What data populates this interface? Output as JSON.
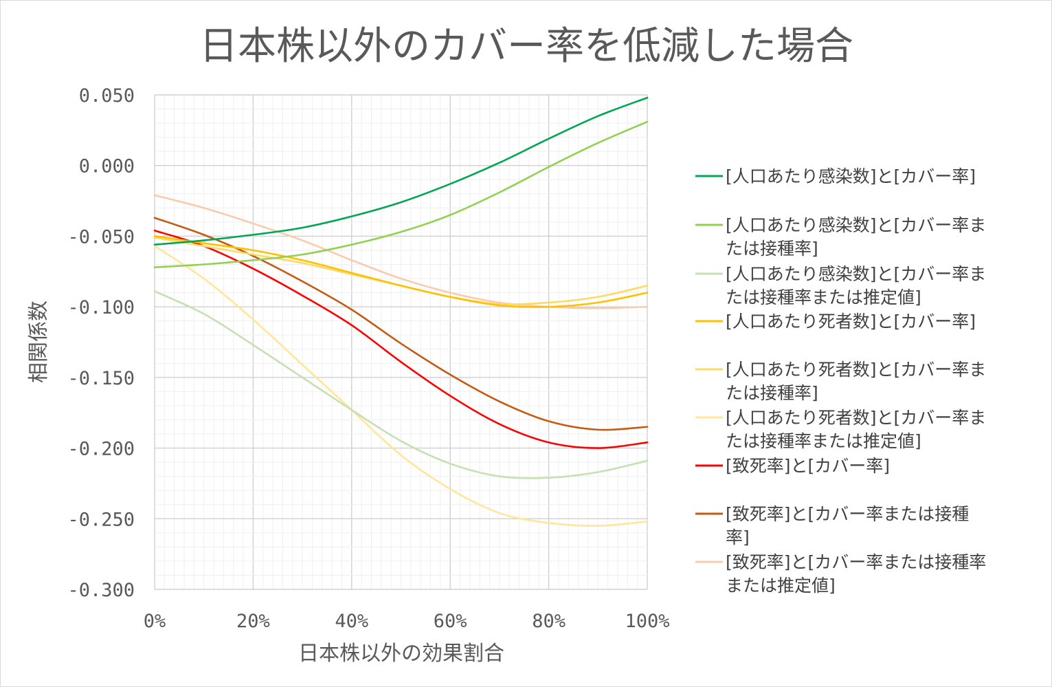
{
  "chart_data": {
    "type": "line",
    "title": "日本株以外のカバー率を低減した場合",
    "xlabel": "日本株以外の効果割合",
    "ylabel": "相関係数",
    "xlim": [
      0,
      100
    ],
    "ylim": [
      -0.3,
      0.05
    ],
    "x_ticks": [
      "0%",
      "20%",
      "40%",
      "60%",
      "80%",
      "100%"
    ],
    "y_ticks": [
      "0.050",
      "0.000",
      "-0.050",
      "-0.100",
      "-0.150",
      "-0.200",
      "-0.250",
      "-0.300"
    ],
    "grid": "major and minor",
    "legend_position": "right",
    "x": [
      0,
      10,
      20,
      30,
      40,
      50,
      60,
      70,
      80,
      90,
      100
    ],
    "series": [
      {
        "name": "[人口あたり感染数]と[カバー率]",
        "color": "#00a651",
        "legend_lines": [
          "[人口あたり感染数]と[カバー率]"
        ],
        "values": [
          -0.056,
          -0.053,
          -0.049,
          -0.044,
          -0.036,
          -0.026,
          -0.013,
          0.002,
          0.019,
          0.035,
          0.048
        ]
      },
      {
        "name": "[人口あたり感染数]と[カバー率または接種率]",
        "color": "#92d050",
        "legend_lines": [
          "[人口あたり感染数]と[カバー率ま",
          "たは接種率]"
        ],
        "values": [
          -0.072,
          -0.07,
          -0.067,
          -0.063,
          -0.056,
          -0.047,
          -0.035,
          -0.019,
          -0.001,
          0.016,
          0.031
        ]
      },
      {
        "name": "[人口あたり感染数]と[カバー率または接種率または推定値]",
        "color": "#c5e0b4",
        "legend_lines": [
          "[人口あたり感染数]と[カバー率ま",
          "たは接種率または推定値]"
        ],
        "values": [
          -0.089,
          -0.105,
          -0.127,
          -0.15,
          -0.173,
          -0.195,
          -0.211,
          -0.22,
          -0.221,
          -0.217,
          -0.209
        ]
      },
      {
        "name": "[人口あたり死者数]と[カバー率]",
        "color": "#ffc000",
        "legend_lines": [
          "[人口あたり死者数]と[カバー率]"
        ],
        "values": [
          -0.05,
          -0.055,
          -0.06,
          -0.067,
          -0.076,
          -0.085,
          -0.093,
          -0.099,
          -0.1,
          -0.097,
          -0.09
        ]
      },
      {
        "name": "[人口あたり死者数]と[カバー率または接種率]",
        "color": "#ffd966",
        "legend_lines": [
          "[人口あたり死者数]と[カバー率ま",
          "たは接種率]"
        ],
        "values": [
          -0.051,
          -0.057,
          -0.063,
          -0.069,
          -0.077,
          -0.085,
          -0.093,
          -0.098,
          -0.097,
          -0.093,
          -0.085
        ]
      },
      {
        "name": "[人口あたり死者数]と[カバー率または接種率または推定値]",
        "color": "#ffe699",
        "legend_lines": [
          "[人口あたり死者数]と[カバー率ま",
          "たは接種率または推定値]"
        ],
        "values": [
          -0.057,
          -0.08,
          -0.109,
          -0.141,
          -0.173,
          -0.205,
          -0.229,
          -0.246,
          -0.253,
          -0.255,
          -0.252
        ]
      },
      {
        "name": "[致死率]と[カバー率]",
        "color": "#ff0000",
        "legend_lines": [
          "[致死率]と[カバー率]"
        ],
        "values": [
          -0.046,
          -0.057,
          -0.073,
          -0.092,
          -0.113,
          -0.139,
          -0.163,
          -0.183,
          -0.196,
          -0.2,
          -0.196
        ]
      },
      {
        "name": "[致死率]と[カバー率または接種率]",
        "color": "#c55a11",
        "legend_lines": [
          "[致死率]と[カバー率または接種",
          "率]"
        ],
        "values": [
          -0.037,
          -0.049,
          -0.064,
          -0.082,
          -0.102,
          -0.126,
          -0.148,
          -0.167,
          -0.181,
          -0.187,
          -0.185
        ]
      },
      {
        "name": "[致死率]と[カバー率または接種率または推定値]",
        "color": "#f8cbad",
        "legend_lines": [
          "[致死率]と[カバー率または接種率",
          "または推定値]"
        ],
        "values": [
          -0.021,
          -0.03,
          -0.041,
          -0.053,
          -0.067,
          -0.08,
          -0.09,
          -0.097,
          -0.1,
          -0.101,
          -0.1
        ]
      }
    ]
  }
}
